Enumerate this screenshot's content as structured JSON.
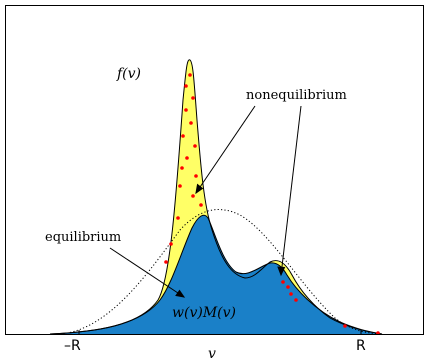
{
  "labels": {
    "f": "f(v)",
    "nonequilibrium": "nonequilibrium",
    "equilibrium": "equilibrium",
    "wM": "w(v)M(v)",
    "xlabel": "v",
    "tick_left": "–R",
    "tick_right": "R"
  },
  "colors": {
    "equilibrium_fill": "#1a80c8",
    "nonequilibrium_fill": "#ffff66",
    "particles": "#ff0000",
    "maxwellian_dotted": "#000000"
  }
}
